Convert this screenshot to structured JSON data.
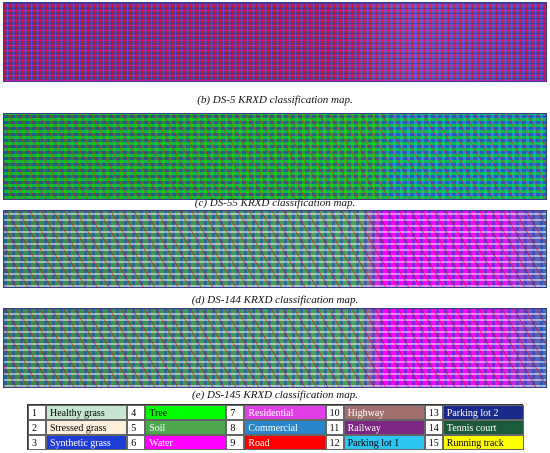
{
  "captions": [
    "(b) DS-5 KRXD classification map.",
    "(c) DS-55 KRXD classification map.",
    "(d) DS-144 KRXD classification map.",
    "(e) DS-145 KRXD classification map."
  ],
  "legend": {
    "items": [
      {
        "number": "1",
        "label": "Healthy grass",
        "color": "#c6e6d0"
      },
      {
        "number": "2",
        "label": "Stressed grass",
        "color": "#fcefdc"
      },
      {
        "number": "3",
        "label": "Synthetic grass",
        "color": "#1e3cd8"
      },
      {
        "number": "4",
        "label": "Tree",
        "color": "#00ff00"
      },
      {
        "number": "5",
        "label": "Soil",
        "color": "#4ea64e"
      },
      {
        "number": "6",
        "label": "Water",
        "color": "#ff00ff"
      },
      {
        "number": "7",
        "label": "Residential",
        "color": "#e23ee8"
      },
      {
        "number": "8",
        "label": "Commercial",
        "color": "#2a86c8"
      },
      {
        "number": "9",
        "label": "Road",
        "color": "#ff0000"
      },
      {
        "number": "10",
        "label": "Highway",
        "color": "#a06e6e"
      },
      {
        "number": "11",
        "label": "Railway",
        "color": "#7e2482"
      },
      {
        "number": "12",
        "label": "Parking lot 1",
        "color": "#2cc4f0"
      },
      {
        "number": "13",
        "label": "Parking lot 2",
        "color": "#1a2a8a"
      },
      {
        "number": "14",
        "label": "Tennis court",
        "color": "#1c5a3c"
      },
      {
        "number": "15",
        "label": "Running track",
        "color": "#ffff00"
      }
    ]
  }
}
